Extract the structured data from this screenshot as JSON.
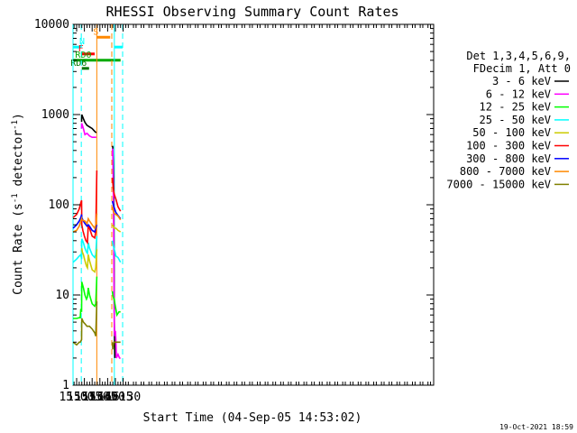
{
  "chart_data": {
    "type": "line",
    "title": "RHESSI Observing Summary Count Rates",
    "xlabel": "Start Time (04-Sep-05 14:53:02)",
    "ylabel_main": "Count Rate (s",
    "ylabel_sup1": "-1",
    "ylabel_mid": " detector",
    "ylabel_sup2": "-1",
    "ylabel_end": ")",
    "yscale": "log",
    "ylim": [
      1,
      10000
    ],
    "xlim_min": [
      893,
      1591
    ],
    "y_ticks": [
      {
        "value": 1,
        "label": "1"
      },
      {
        "value": 10,
        "label": "10"
      },
      {
        "value": 100,
        "label": "100"
      },
      {
        "value": 1000,
        "label": "1000"
      },
      {
        "value": 10000,
        "label": "10000"
      }
    ],
    "x_ticks": [
      {
        "value": 900,
        "label": "15:00"
      },
      {
        "value": 915,
        "label": "15:15"
      },
      {
        "value": 930,
        "label": "15:30"
      },
      {
        "value": 945,
        "label": "15:45"
      },
      {
        "value": 960,
        "label": "16:00"
      },
      {
        "value": 975,
        "label": "16:15"
      },
      {
        "value": 990,
        "label": "16:30"
      }
    ],
    "legend_header": [
      "Det 1,3,4,5,6,9,",
      "FDecim 1, Att 0"
    ],
    "series": [
      {
        "name": "3 - 6 keV",
        "color": "#000000",
        "segments": [
          [
            [
              909.5,
              830
            ],
            [
              910,
              1000
            ],
            [
              913,
              900
            ],
            [
              916,
              820
            ],
            [
              920,
              760
            ],
            [
              925,
              730
            ],
            [
              930,
              700
            ],
            [
              935,
              650
            ],
            [
              938,
              630
            ]
          ],
          [
            [
              969,
              450
            ],
            [
              970,
              440
            ],
            [
              971.5,
              200
            ],
            [
              972,
              60
            ],
            [
              973,
              5
            ],
            [
              974,
              2
            ],
            [
              975,
              3
            ],
            [
              976,
              2.5
            ]
          ]
        ]
      },
      {
        "name": "6 - 12 keV",
        "color": "#ff00ff",
        "segments": [
          [
            [
              909.5,
              700
            ],
            [
              910,
              800
            ],
            [
              913,
              700
            ],
            [
              916,
              600
            ],
            [
              920,
              620
            ],
            [
              925,
              580
            ],
            [
              930,
              560
            ],
            [
              935,
              560
            ],
            [
              938,
              560
            ]
          ],
          [
            [
              969,
              350
            ],
            [
              970,
              420
            ],
            [
              971.5,
              80
            ],
            [
              972,
              20
            ],
            [
              973,
              4
            ],
            [
              974,
              3.5
            ],
            [
              975,
              4
            ],
            [
              976,
              3
            ],
            [
              977,
              2
            ],
            [
              980,
              2.2
            ],
            [
              983,
              2
            ],
            [
              985,
              2
            ]
          ]
        ]
      },
      {
        "name": "12 - 25 keV",
        "color": "#00ff00",
        "segments": [
          [
            [
              893,
              5.5
            ],
            [
              900,
              5.5
            ],
            [
              905,
              5.6
            ],
            [
              907,
              5.6
            ],
            [
              908,
              7
            ],
            [
              909.5,
              6.5
            ],
            [
              910,
              14
            ],
            [
              913,
              12
            ],
            [
              916,
              10
            ],
            [
              919,
              9
            ],
            [
              921,
              9.5
            ],
            [
              922.5,
              12
            ],
            [
              925,
              10
            ],
            [
              930,
              8
            ],
            [
              935,
              7.5
            ],
            [
              937,
              8
            ],
            [
              939,
              16
            ]
          ],
          [
            [
              969,
              11
            ],
            [
              970,
              10
            ],
            [
              972,
              9
            ],
            [
              973,
              9
            ],
            [
              974,
              8
            ],
            [
              978,
              6
            ],
            [
              982,
              6.5
            ],
            [
              985,
              6.5
            ]
          ]
        ]
      },
      {
        "name": "25 - 50 keV",
        "color": "#00ffff",
        "segments": [
          [
            [
              893,
              23
            ],
            [
              900,
              25
            ],
            [
              905,
              27
            ],
            [
              908,
              28
            ],
            [
              909.5,
              25
            ],
            [
              910,
              42
            ],
            [
              913,
              38
            ],
            [
              916,
              33
            ],
            [
              919,
              30
            ],
            [
              921,
              29
            ],
            [
              922.5,
              38
            ],
            [
              925,
              33
            ],
            [
              930,
              28
            ],
            [
              935,
              26
            ],
            [
              937,
              28
            ],
            [
              939,
              45
            ]
          ],
          [
            [
              969,
              40
            ],
            [
              971,
              35
            ],
            [
              973,
              32
            ],
            [
              976,
              27
            ],
            [
              980,
              26
            ],
            [
              985,
              23
            ]
          ]
        ]
      },
      {
        "name": "50 - 100 keV",
        "color": "#cccc00",
        "segments": [
          [
            [
              910,
              33
            ],
            [
              911,
              30
            ],
            [
              913,
              28
            ],
            [
              916,
              24
            ],
            [
              919,
              21
            ],
            [
              921,
              20
            ],
            [
              922.5,
              28
            ],
            [
              925,
              24
            ],
            [
              930,
              19
            ],
            [
              935,
              18
            ],
            [
              937,
              20
            ],
            [
              939,
              32
            ]
          ],
          [
            [
              969,
              60
            ],
            [
              971,
              58
            ],
            [
              973,
              55
            ],
            [
              976,
              55
            ],
            [
              980,
              52
            ],
            [
              985,
              50
            ]
          ]
        ]
      },
      {
        "name": "100 - 300 keV",
        "color": "#ff0000",
        "segments": [
          [
            [
              893,
              72
            ],
            [
              900,
              78
            ],
            [
              905,
              90
            ],
            [
              908,
              105
            ],
            [
              909.5,
              112
            ],
            [
              910,
              60
            ],
            [
              912,
              52
            ],
            [
              915,
              45
            ],
            [
              918,
              40
            ],
            [
              921,
              38
            ],
            [
              922.5,
              60
            ],
            [
              925,
              55
            ],
            [
              930,
              45
            ],
            [
              935,
              43
            ],
            [
              937,
              50
            ],
            [
              939,
              240
            ]
          ],
          [
            [
              969,
              200
            ],
            [
              971,
              150
            ],
            [
              973,
              130
            ],
            [
              976,
              115
            ],
            [
              980,
              95
            ],
            [
              985,
              85
            ]
          ]
        ]
      },
      {
        "name": "300 - 800 keV",
        "color": "#0000ff",
        "segments": [
          [
            [
              893,
              55
            ],
            [
              900,
              60
            ],
            [
              905,
              66
            ],
            [
              908,
              72
            ],
            [
              909.5,
              78
            ],
            [
              910,
              72
            ],
            [
              913,
              66
            ],
            [
              916,
              62
            ],
            [
              920,
              58
            ],
            [
              922.5,
              60
            ],
            [
              925,
              58
            ],
            [
              930,
              52
            ],
            [
              935,
              50
            ],
            [
              937,
              55
            ],
            [
              939,
              60
            ]
          ],
          [
            [
              969,
              110
            ],
            [
              971,
              100
            ],
            [
              973,
              92
            ],
            [
              976,
              82
            ],
            [
              980,
              76
            ],
            [
              985,
              70
            ]
          ]
        ]
      },
      {
        "name": "800 - 7000 keV",
        "color": "#ff8800",
        "segments": [
          [
            [
              893,
              50
            ],
            [
              900,
              52
            ],
            [
              905,
              58
            ],
            [
              908,
              66
            ],
            [
              909.5,
              70
            ],
            [
              910,
              68
            ],
            [
              913,
              67
            ],
            [
              916,
              66
            ],
            [
              920,
              62
            ],
            [
              922.5,
              70
            ],
            [
              925,
              66
            ],
            [
              930,
              60
            ],
            [
              935,
              55
            ],
            [
              937,
              60
            ],
            [
              939,
              80
            ]
          ],
          [
            [
              969,
              95
            ],
            [
              971,
              85
            ],
            [
              973,
              80
            ],
            [
              976,
              78
            ],
            [
              980,
              75
            ],
            [
              985,
              68
            ]
          ]
        ]
      },
      {
        "name": "7000 - 15000 keV",
        "color": "#808000",
        "segments": [
          [
            [
              893,
              3
            ],
            [
              900,
              2.8
            ],
            [
              905,
              3
            ],
            [
              907,
              3
            ],
            [
              909.5,
              3.2
            ],
            [
              910,
              5.5
            ],
            [
              913,
              5
            ],
            [
              916,
              4.8
            ],
            [
              920,
              4.5
            ],
            [
              925,
              4.5
            ],
            [
              930,
              4.2
            ],
            [
              935,
              3.8
            ],
            [
              937,
              3.5
            ],
            [
              939,
              8.5
            ]
          ],
          [
            [
              969,
              3
            ],
            [
              970,
              2.5
            ],
            [
              972,
              3
            ],
            [
              975,
              3
            ],
            [
              980,
              3
            ],
            [
              985,
              3
            ]
          ]
        ]
      }
    ],
    "flag_bars": [
      {
        "label": "N",
        "color": "#00ffff",
        "y": 5600,
        "ranges": [
          [
            893,
            909
          ]
        ],
        "label_x": 910.5
      },
      {
        "label": "N",
        "color": "#00ffff",
        "y": 5600,
        "ranges": [
          [
            973,
            989
          ]
        ],
        "label_x": null
      },
      {
        "label": "F",
        "color": "#ff0000",
        "y": 4700,
        "ranges": [
          [
            910,
            935
          ]
        ],
        "label_x": 908
      },
      {
        "label": "RD0",
        "color": "#00aa00",
        "y": 4000,
        "ranges": [
          [
            893,
            985
          ]
        ],
        "label_x": 913
      },
      {
        "label": "RD6",
        "color": "#007700",
        "y": 3250,
        "ranges": [
          [
            910,
            924
          ]
        ],
        "label_x": 904
      },
      {
        "label": "S",
        "color": "#ff8800",
        "y": 7200,
        "ranges": [
          [
            939,
            965
          ]
        ],
        "label_x": 937
      }
    ],
    "vlines": [
      {
        "x": 893,
        "color": "#00ffff",
        "style": "solid"
      },
      {
        "x": 909,
        "color": "#00ffff",
        "style": "dashed"
      },
      {
        "x": 939,
        "color": "#ff8800",
        "style": "solid"
      },
      {
        "x": 968,
        "color": "#ff8800",
        "style": "dashed"
      },
      {
        "x": 973,
        "color": "#00ffff",
        "style": "solid"
      },
      {
        "x": 989,
        "color": "#00ffff",
        "style": "dashed"
      }
    ],
    "timestamp": "19-Oct-2021 18:59"
  }
}
